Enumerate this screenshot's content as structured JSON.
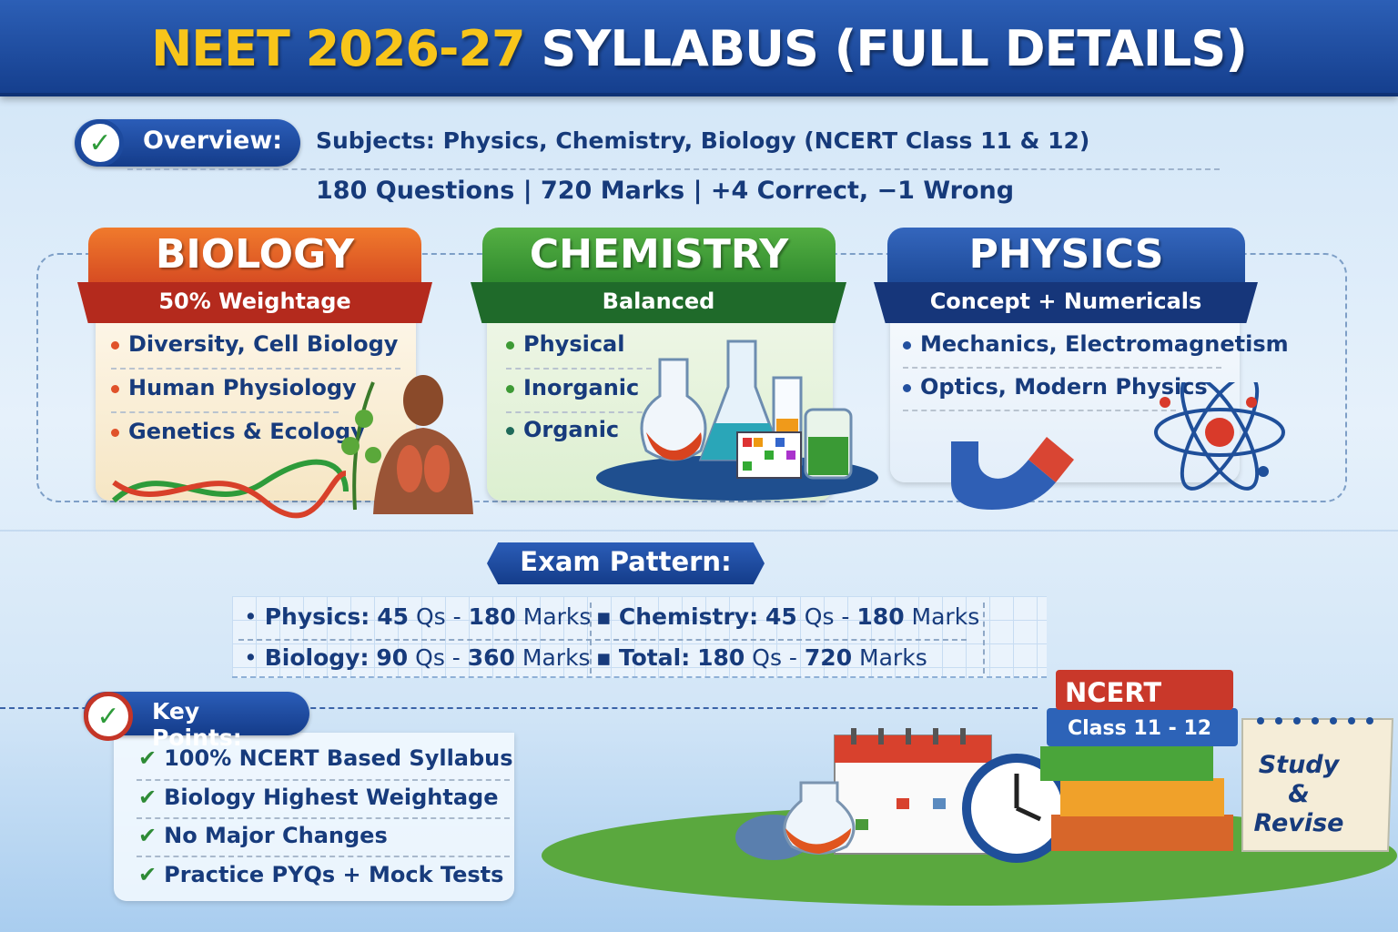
{
  "header": {
    "title_highlight": "NEET 2026-27",
    "title_rest": "SYLLABUS (FULL DETAILS)"
  },
  "overview": {
    "label": "Overview:",
    "subjects": "Subjects: Physics, Chemistry, Biology (NCERT Class 11 & 12)",
    "stats": "180 Questions | 720 Marks | +4 Correct, −1 Wrong"
  },
  "subjects": [
    {
      "title": "BIOLOGY",
      "subtitle": "50% Weightage",
      "color": "#e0522a",
      "items": [
        "Diversity, Cell Biology",
        "Human Physiology",
        "Genetics & Ecology"
      ]
    },
    {
      "title": "CHEMISTRY",
      "subtitle": "Balanced",
      "color": "#3d9a35",
      "items": [
        "Physical",
        "Inorganic",
        "Organic"
      ]
    },
    {
      "title": "PHYSICS",
      "subtitle": "Concept + Numericals",
      "color": "#23509f",
      "items": [
        "Mechanics, Electromagnetism",
        "Optics, Modern Physics"
      ]
    }
  ],
  "exam_pattern": {
    "title": "Exam Pattern:",
    "rows": [
      {
        "label": "Physics:",
        "qs": "45",
        "qs_unit": "Qs -",
        "marks": "180",
        "marks_unit": "Marks"
      },
      {
        "label": "Chemistry:",
        "qs": "45",
        "qs_unit": "Qs -",
        "marks": "180",
        "marks_unit": "Marks"
      },
      {
        "label": "Biology:",
        "qs": "90",
        "qs_unit": "Qs -",
        "marks": "360",
        "marks_unit": "Marks"
      },
      {
        "label": "Total:",
        "qs": "180",
        "qs_unit": "Qs -",
        "marks": "720",
        "marks_unit": "Marks"
      }
    ]
  },
  "key_points": {
    "title": "Key Points:",
    "items": [
      "100% NCERT Based Syllabus",
      "Biology Highest Weightage",
      "No Major Changes",
      "Practice PYQs + Mock Tests"
    ]
  },
  "illustration": {
    "book_top": "NCERT",
    "book_second": "Class 11 - 12",
    "notepad": "Study & Revise"
  }
}
